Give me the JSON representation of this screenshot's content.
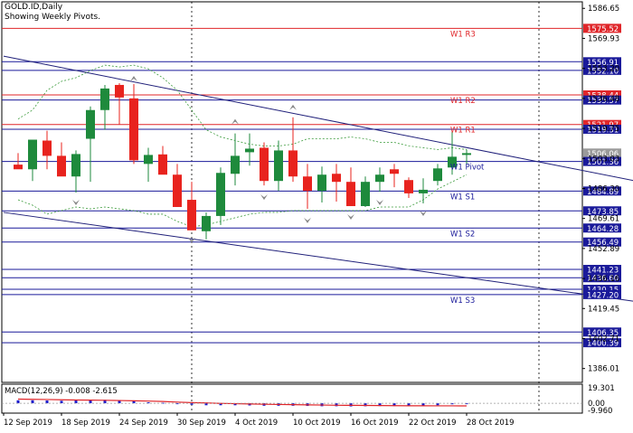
{
  "header": {
    "symbol_line": "GOLD.ID,Daily",
    "subtitle": "Showing Weekly Pivots."
  },
  "colors": {
    "bull": "#1e8a3c",
    "bear": "#e8231e",
    "resistance": "#e0262a",
    "support": "#1a1a9a",
    "trend": "#20207a",
    "band": "#3a9a3a",
    "macd_hist": "#1a1acc",
    "macd_signal": "#e0262a"
  },
  "chart_data": {
    "type": "candlestick",
    "ylim": [
      1378.3,
      1590.3
    ],
    "x": [
      "2019-09-12",
      "2019-09-13",
      "2019-09-16",
      "2019-09-17",
      "2019-09-18",
      "2019-09-19",
      "2019-09-20",
      "2019-09-23",
      "2019-09-24",
      "2019-09-25",
      "2019-09-26",
      "2019-09-27",
      "2019-09-30",
      "2019-10-01",
      "2019-10-02",
      "2019-10-03",
      "2019-10-04",
      "2019-10-07",
      "2019-10-08",
      "2019-10-09",
      "2019-10-10",
      "2019-10-11",
      "2019-10-14",
      "2019-10-15",
      "2019-10-16",
      "2019-10-17",
      "2019-10-18",
      "2019-10-21",
      "2019-10-22",
      "2019-10-23",
      "2019-10-24",
      "2019-10-25"
    ],
    "open": [
      1499.6,
      1497.0,
      1513.0,
      1504.5,
      1493.0,
      1514.0,
      1530.0,
      1544.0,
      1536.5,
      1500.0,
      1505.3,
      1494.0,
      1480.0,
      1462.5,
      1471.0,
      1494.5,
      1506.5,
      1509.0,
      1490.5,
      1507.5,
      1493.0,
      1485.0,
      1494.5,
      1490.0,
      1476.5,
      1490.0,
      1497.0,
      1491.0,
      1483.6,
      1490.5,
      1498.0,
      1505.0
    ],
    "high": [
      1506.0,
      1513.5,
      1518.5,
      1512.0,
      1507.5,
      1532.0,
      1544.0,
      1545.0,
      1544.5,
      1509.0,
      1510.0,
      1500.0,
      1490.0,
      1473.0,
      1498.0,
      1517.0,
      1517.0,
      1512.0,
      1513.0,
      1526.0,
      1500.0,
      1498.5,
      1500.0,
      1498.0,
      1493.0,
      1498.0,
      1500.0,
      1492.5,
      1492.0,
      1500.0,
      1518.0,
      1508.0
    ],
    "low": [
      1497.5,
      1490.5,
      1497.0,
      1495.0,
      1484.0,
      1490.0,
      1519.0,
      1522.0,
      1500.0,
      1490.0,
      1495.0,
      1476.0,
      1463.5,
      1458.0,
      1466.0,
      1488.0,
      1499.0,
      1488.0,
      1485.0,
      1490.0,
      1475.0,
      1478.5,
      1479.0,
      1477.0,
      1476.0,
      1484.5,
      1487.0,
      1481.0,
      1478.0,
      1488.0,
      1494.0,
      1500.0
    ],
    "close": [
      1497.0,
      1513.5,
      1504.5,
      1493.0,
      1505.5,
      1530.0,
      1542.0,
      1537.0,
      1502.0,
      1505.0,
      1494.0,
      1476.0,
      1463.0,
      1471.0,
      1495.0,
      1504.5,
      1508.5,
      1490.5,
      1507.5,
      1493.0,
      1485.0,
      1494.0,
      1490.0,
      1476.5,
      1490.0,
      1494.0,
      1494.5,
      1483.6,
      1485.6,
      1497.5,
      1504.0,
      1506.0
    ],
    "x_tick_labels": [
      {
        "i": 0,
        "label": "12 Sep 2019"
      },
      {
        "i": 4,
        "label": "18 Sep 2019"
      },
      {
        "i": 8,
        "label": "24 Sep 2019"
      },
      {
        "i": 12,
        "label": "30 Sep 2019"
      },
      {
        "i": 16,
        "label": "4 Oct 2019"
      },
      {
        "i": 20,
        "label": "10 Oct 2019"
      },
      {
        "i": 24,
        "label": "16 Oct 2019"
      },
      {
        "i": 28,
        "label": "22 Oct 2019"
      },
      {
        "i": 32,
        "label": "28 Oct 2019"
      }
    ],
    "y_tick_labels": [
      "1586.65",
      "1569.93",
      "1553.20",
      "1536.48",
      "1519.75",
      "1503.03",
      "1486.30",
      "1469.61",
      "1452.89",
      "1436.16",
      "1419.45",
      "1402.71",
      "1386.01"
    ],
    "price_levels": [
      {
        "value": 1575.52,
        "label": "1575.52",
        "kind": "resistance"
      },
      {
        "value": 1556.91,
        "label": "1556.91",
        "kind": "support"
      },
      {
        "value": 1552.1,
        "label": "1552.10",
        "kind": "support"
      },
      {
        "value": 1538.44,
        "label": "1538.44",
        "kind": "resistance"
      },
      {
        "value": 1535.57,
        "label": "1535.57",
        "kind": "support"
      },
      {
        "value": 1521.97,
        "label": "1521.97",
        "kind": "resistance"
      },
      {
        "value": 1519.31,
        "label": "1519.31",
        "kind": "support"
      },
      {
        "value": 1506.06,
        "label": "1506.06",
        "kind": "current"
      },
      {
        "value": 1501.36,
        "label": "1501.36",
        "kind": "pivot"
      },
      {
        "value": 1484.89,
        "label": "1484.89",
        "kind": "support"
      },
      {
        "value": 1473.85,
        "label": "1473.85",
        "kind": "support"
      },
      {
        "value": 1464.28,
        "label": "1464.28",
        "kind": "support"
      },
      {
        "value": 1456.49,
        "label": "1456.49",
        "kind": "support"
      },
      {
        "value": 1441.23,
        "label": "1441.23",
        "kind": "support"
      },
      {
        "value": 1436.6,
        "label": "1436.60",
        "kind": "support"
      },
      {
        "value": 1430.15,
        "label": "1430.15",
        "kind": "support"
      },
      {
        "value": 1427.2,
        "label": "1427.20",
        "kind": "support"
      },
      {
        "value": 1406.35,
        "label": "1406.35",
        "kind": "support"
      },
      {
        "value": 1400.39,
        "label": "1400.39",
        "kind": "support"
      }
    ],
    "pivot_labels": [
      {
        "value": 1575.52,
        "label": "W1  R3",
        "kind": "resistance"
      },
      {
        "value": 1538.44,
        "label": "W1  R2",
        "kind": "resistance"
      },
      {
        "value": 1521.97,
        "label": "W1  R1",
        "kind": "resistance"
      },
      {
        "value": 1501.36,
        "label": "W1  Pivot",
        "kind": "pivot"
      },
      {
        "value": 1484.89,
        "label": "W1  S1",
        "kind": "support"
      },
      {
        "value": 1464.28,
        "label": "W1  S2",
        "kind": "support"
      },
      {
        "value": 1427.2,
        "label": "W1  S3",
        "kind": "support"
      }
    ],
    "trendlines": [
      {
        "from": {
          "i": -1,
          "y": 1560.0
        },
        "to": {
          "i": 43,
          "y": 1490.0
        }
      },
      {
        "from": {
          "i": -1,
          "y": 1473.0
        },
        "to": {
          "i": 43,
          "y": 1423.0
        }
      }
    ],
    "band_upper": [
      1525,
      1530,
      1541,
      1546,
      1548,
      1552,
      1555,
      1554,
      1555,
      1553,
      1548,
      1541,
      1530,
      1519,
      1515,
      1513,
      1511,
      1510,
      1510,
      1511,
      1514,
      1514,
      1514,
      1515,
      1514,
      1512,
      1512,
      1510,
      1509,
      1508,
      1509,
      1508
    ],
    "band_lower": [
      1480,
      1477,
      1472,
      1474,
      1476,
      1475,
      1476,
      1475,
      1474,
      1472,
      1472,
      1468,
      1465,
      1466,
      1468,
      1470,
      1472,
      1473,
      1473,
      1474,
      1474,
      1474,
      1474,
      1474,
      1474,
      1476,
      1476,
      1476,
      1480,
      1486,
      1490,
      1494
    ],
    "fractals_up": [
      {
        "i": 8,
        "y": 1545.0
      },
      {
        "i": 15,
        "y": 1521.0
      },
      {
        "i": 19,
        "y": 1529.0
      }
    ],
    "fractals_down": [
      {
        "i": 4,
        "y": 1481.0
      },
      {
        "i": 12,
        "y": 1460.0
      },
      {
        "i": 17,
        "y": 1484.0
      },
      {
        "i": 20,
        "y": 1471.0
      },
      {
        "i": 23,
        "y": 1473.0
      },
      {
        "i": 25,
        "y": 1481.0
      },
      {
        "i": 28,
        "y": 1475.0
      }
    ],
    "macd": {
      "label": "MACD(12,26,9) -0.008 -2.615",
      "y_tick_labels": [
        "19.301",
        "0.00",
        "-9.960"
      ],
      "ylim": [
        -9.96,
        19.301
      ],
      "histogram": [
        3.0,
        3.0,
        2.8,
        2.5,
        2.8,
        3.0,
        3.5,
        3.2,
        2.0,
        1.0,
        0.5,
        -0.5,
        -1.5,
        -2.0,
        -2.0,
        -2.0,
        -2.2,
        -2.5,
        -2.5,
        -2.5,
        -2.7,
        -3.0,
        -3.0,
        -3.2,
        -3.0,
        -2.8,
        -2.8,
        -3.0,
        -2.5,
        -2.0,
        -1.0,
        -0.008
      ],
      "signal": [
        4.2,
        4.0,
        3.8,
        3.5,
        3.3,
        3.2,
        3.0,
        2.8,
        2.5,
        2.2,
        1.8,
        1.2,
        0.7,
        0.3,
        -0.1,
        -0.4,
        -0.7,
        -1.0,
        -1.2,
        -1.4,
        -1.6,
        -1.8,
        -2.0,
        -2.1,
        -2.2,
        -2.3,
        -2.4,
        -2.5,
        -2.55,
        -2.6,
        -2.61,
        -2.615
      ]
    }
  }
}
